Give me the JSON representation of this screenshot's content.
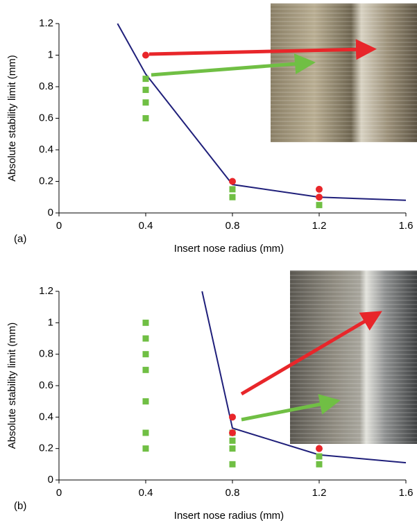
{
  "chart_data": [
    {
      "type": "scatter",
      "label": "(a)",
      "x_label": "Insert nose radius (mm)",
      "y_label": "Absolute stability limit (mm)",
      "xlim": [
        0,
        1.6
      ],
      "xticks": [
        0,
        0.4,
        0.8,
        1.2,
        1.6
      ],
      "ylim": [
        0,
        1.2
      ],
      "yticks": [
        0,
        0.2,
        0.4,
        0.6,
        0.8,
        1,
        1.2
      ],
      "series": [
        {
          "style": "line",
          "color": "#1f1f7a",
          "x": [
            0.27,
            0.4,
            0.8,
            1.2,
            1.6
          ],
          "values": [
            1.2,
            0.88,
            0.18,
            0.1,
            0.08
          ]
        },
        {
          "style": "square",
          "color": "#70bf44",
          "x": [
            0.4,
            0.4,
            0.4,
            0.4,
            0.8,
            0.8,
            1.2
          ],
          "values": [
            0.85,
            0.78,
            0.7,
            0.6,
            0.15,
            0.1,
            0.05
          ]
        },
        {
          "style": "circle",
          "color": "#e8262a",
          "x": [
            0.4,
            0.8,
            1.2,
            1.2
          ],
          "values": [
            1.0,
            0.2,
            0.15,
            0.1
          ]
        }
      ]
    },
    {
      "type": "scatter",
      "label": "(b)",
      "x_label": "Insert nose radius (mm)",
      "y_label": "Absolute stability limit (mm)",
      "xlim": [
        0,
        1.6
      ],
      "xticks": [
        0,
        0.4,
        0.8,
        1.2,
        1.6
      ],
      "ylim": [
        0,
        1.2
      ],
      "yticks": [
        0,
        0.2,
        0.4,
        0.6,
        0.8,
        1,
        1.2
      ],
      "series": [
        {
          "style": "line",
          "color": "#1f1f7a",
          "x": [
            0.66,
            0.8,
            1.2,
            1.6
          ],
          "values": [
            1.2,
            0.33,
            0.16,
            0.11
          ]
        },
        {
          "style": "square",
          "color": "#70bf44",
          "x": [
            0.4,
            0.4,
            0.4,
            0.4,
            0.4,
            0.4,
            0.4,
            0.8,
            0.8,
            0.8,
            0.8,
            1.2,
            1.2
          ],
          "values": [
            1.0,
            0.9,
            0.8,
            0.7,
            0.5,
            0.3,
            0.2,
            0.3,
            0.25,
            0.2,
            0.1,
            0.15,
            0.1
          ]
        },
        {
          "style": "circle",
          "color": "#e8262a",
          "x": [
            0.8,
            0.8,
            1.2,
            1.2
          ],
          "values": [
            0.4,
            0.3,
            0.25,
            0.2
          ]
        }
      ]
    }
  ]
}
